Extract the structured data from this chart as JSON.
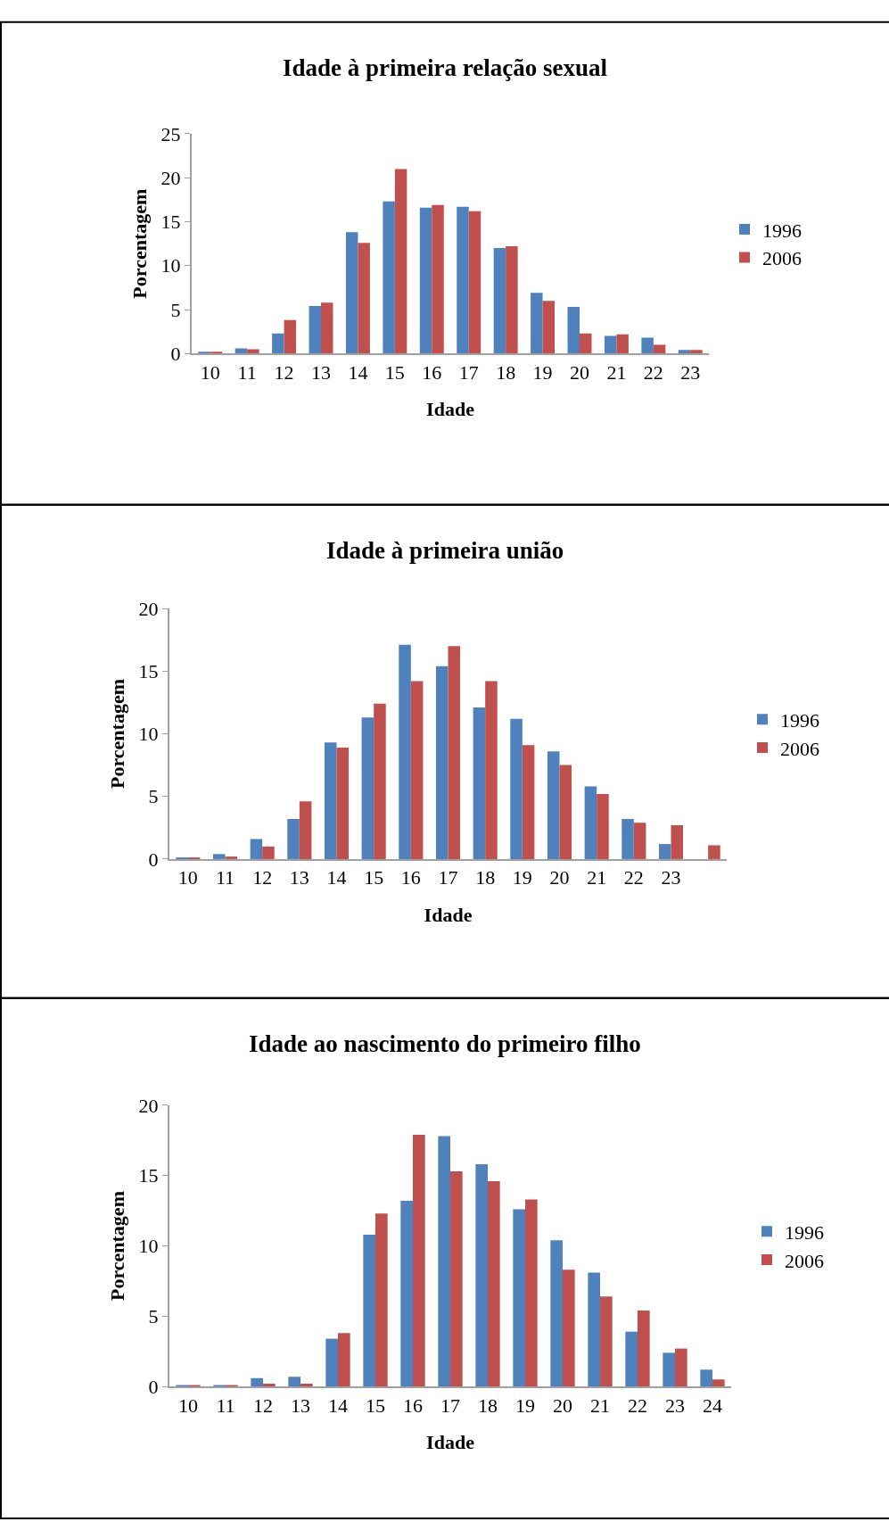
{
  "chart_data": [
    {
      "type": "bar",
      "title": "Idade à primeira relação sexual",
      "xlabel": "Idade",
      "ylabel": "Porcentagem",
      "categories": [
        "10",
        "11",
        "12",
        "13",
        "14",
        "15",
        "16",
        "17",
        "18",
        "19",
        "20",
        "21",
        "22",
        "23"
      ],
      "series": [
        {
          "name": "1996",
          "color": "#4f81bd",
          "values": [
            0.2,
            0.6,
            2.3,
            5.4,
            13.8,
            17.3,
            16.6,
            16.7,
            12.0,
            6.9,
            5.3,
            2.0,
            1.8,
            0.4
          ]
        },
        {
          "name": "2006",
          "color": "#c0504d",
          "values": [
            0.2,
            0.5,
            3.8,
            5.8,
            12.6,
            21.0,
            16.9,
            16.2,
            12.2,
            6.0,
            2.3,
            2.2,
            1.0,
            0.4
          ]
        }
      ],
      "ylim": [
        0,
        25
      ],
      "yticks": [
        0,
        5,
        10,
        15,
        20,
        25
      ],
      "legend": "right"
    },
    {
      "type": "bar",
      "title": "Idade à primeira união",
      "xlabel": "Idade",
      "ylabel": "Porcentagem",
      "categories": [
        "10",
        "11",
        "12",
        "13",
        "14",
        "15",
        "16",
        "17",
        "18",
        "19",
        "20",
        "21",
        "22",
        "23",
        null
      ],
      "series": [
        {
          "name": "1996",
          "color": "#4f81bd",
          "values": [
            0.1,
            0.4,
            1.6,
            3.2,
            9.3,
            11.3,
            17.1,
            15.4,
            12.1,
            11.2,
            8.6,
            5.8,
            3.2,
            1.2,
            null
          ]
        },
        {
          "name": "2006",
          "color": "#c0504d",
          "values": [
            0.1,
            0.2,
            1.0,
            4.6,
            8.9,
            12.4,
            14.2,
            17.0,
            14.2,
            9.1,
            7.5,
            5.2,
            2.9,
            2.7,
            1.1
          ]
        }
      ],
      "ylim": [
        0,
        20
      ],
      "yticks": [
        0,
        5,
        10,
        15,
        20
      ],
      "legend": "right"
    },
    {
      "type": "bar",
      "title": "Idade ao nascimento do primeiro filho",
      "xlabel": "Idade",
      "ylabel": "Porcentagem",
      "categories": [
        "10",
        "11",
        "12",
        "13",
        "14",
        "15",
        "16",
        "17",
        "18",
        "19",
        "20",
        "21",
        "22",
        "23",
        "24"
      ],
      "series": [
        {
          "name": "1996",
          "color": "#4f81bd",
          "values": [
            0.1,
            0.1,
            0.6,
            0.7,
            3.4,
            10.8,
            13.2,
            17.8,
            15.8,
            12.6,
            10.4,
            8.1,
            3.9,
            2.4,
            1.2
          ]
        },
        {
          "name": "2006",
          "color": "#c0504d",
          "values": [
            0.1,
            0.1,
            0.2,
            0.2,
            3.8,
            12.3,
            17.9,
            15.3,
            14.6,
            13.3,
            8.3,
            6.4,
            5.4,
            2.7,
            0.5
          ]
        }
      ],
      "ylim": [
        0,
        20
      ],
      "yticks": [
        0,
        5,
        10,
        15,
        20
      ],
      "legend": "right"
    }
  ]
}
